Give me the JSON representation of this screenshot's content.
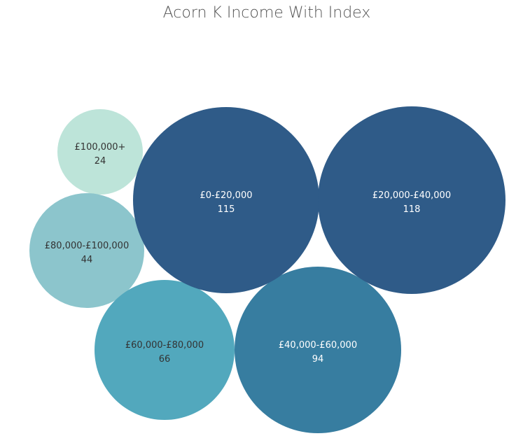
{
  "chart_data": {
    "type": "bubble",
    "title": "Acorn K Income With Index",
    "bubbles": [
      {
        "label": "£100,000+",
        "value": 24,
        "color": "#bde4d9",
        "text_color": "#333333"
      },
      {
        "label": "£80,000-£100,000",
        "value": 44,
        "color": "#8cc5cc",
        "text_color": "#333333"
      },
      {
        "label": "£60,000-£80,000",
        "value": 66,
        "color": "#52a8bd",
        "text_color": "#333333"
      },
      {
        "label": "£40,000-£60,000",
        "value": 94,
        "color": "#377da0",
        "text_color": "#ffffff"
      },
      {
        "label": "£0-£20,000",
        "value": 115,
        "color": "#2f5b88",
        "text_color": "#ffffff"
      },
      {
        "label": "£20,000-£40,000",
        "value": 118,
        "color": "#2f5b88",
        "text_color": "#ffffff"
      }
    ]
  }
}
